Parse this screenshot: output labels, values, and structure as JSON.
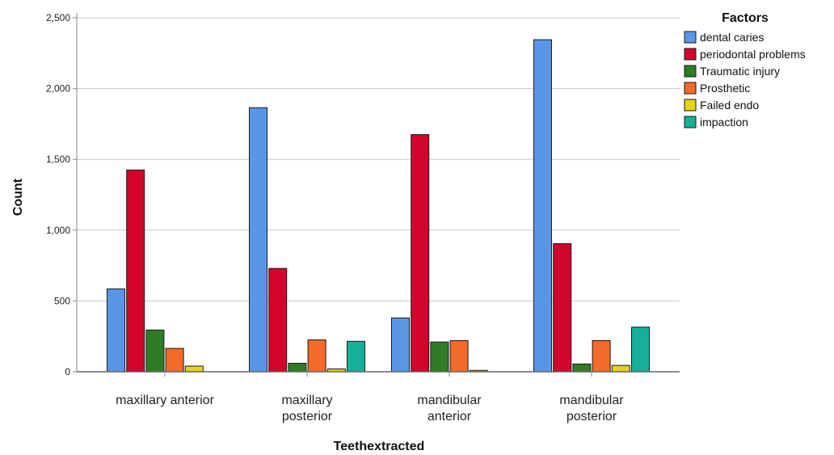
{
  "chart_data": {
    "type": "bar",
    "xlabel": "Teethextracted",
    "ylabel": "Count",
    "ylim": [
      0,
      2500
    ],
    "yticks": [
      0,
      500,
      1000,
      1500,
      2000,
      2500
    ],
    "ytick_labels": [
      "0",
      "500",
      "1,000",
      "1,500",
      "2,000",
      "2,500"
    ],
    "grid": "horizontal",
    "legend_title": "Factors",
    "legend_position": "top-right",
    "categories": [
      [
        "maxillary anterior"
      ],
      [
        "maxillary",
        "posterior"
      ],
      [
        "mandibular",
        "anterior"
      ],
      [
        "mandibular",
        "posterior"
      ]
    ],
    "series": [
      {
        "name": "dental caries",
        "color": "#5a96e6",
        "values": [
          585,
          1865,
          380,
          2345
        ]
      },
      {
        "name": "periodontal problems",
        "color": "#d2042d",
        "values": [
          1425,
          730,
          1675,
          905
        ]
      },
      {
        "name": "Traumatic injury",
        "color": "#2e7d26",
        "values": [
          295,
          60,
          210,
          55
        ]
      },
      {
        "name": "Prosthetic",
        "color": "#f26b28",
        "values": [
          165,
          225,
          220,
          220
        ]
      },
      {
        "name": "Failed endo",
        "color": "#e6d21a",
        "values": [
          40,
          20,
          10,
          45
        ]
      },
      {
        "name": "impaction",
        "color": "#14b09a",
        "values": [
          0,
          215,
          0,
          315
        ]
      }
    ]
  }
}
